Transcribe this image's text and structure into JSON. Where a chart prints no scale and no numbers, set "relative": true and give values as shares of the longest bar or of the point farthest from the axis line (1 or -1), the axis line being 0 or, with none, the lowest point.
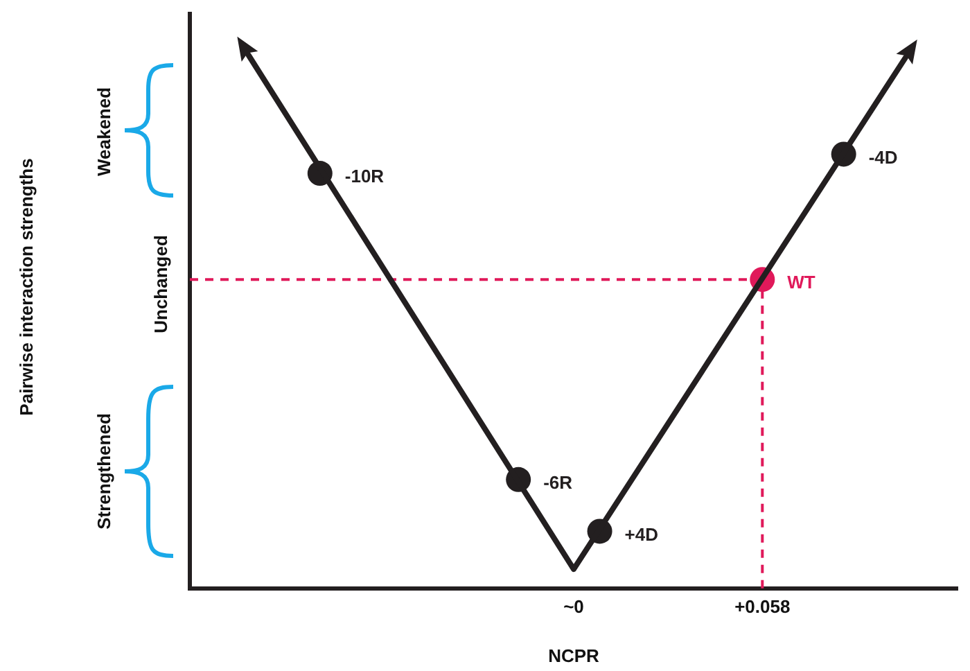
{
  "chart_data": {
    "type": "scatter",
    "xlabel": "NCPR",
    "relative": true,
    "xlim": [
      -0.118,
      0.118
    ],
    "xticks": [
      {
        "value": 0,
        "label": "~0"
      },
      {
        "value": 0.058,
        "label": "+0.058"
      }
    ],
    "annotations": [
      "Pairwise interaction strengths",
      "Weakened",
      "Unchanged",
      "Strengthened",
      {
        "text": "-10R",
        "x": -0.078,
        "y": 0.778
      },
      {
        "text": "-6R",
        "x": -0.017,
        "y": 0.204
      },
      {
        "text": "+4D",
        "x": 0.008,
        "y": 0.107
      },
      {
        "text": "WT",
        "x": 0.058,
        "y": 0.579
      },
      {
        "text": "-4D",
        "x": 0.083,
        "y": 0.814
      }
    ],
    "ref_lines": [
      {
        "axis": "y",
        "value": 0.579,
        "color": "#e0195a",
        "line_style": "dashed"
      },
      {
        "axis": "x",
        "value": 0.058,
        "color": "#e0195a",
        "line_style": "dashed"
      }
    ],
    "grid": false,
    "legend": false,
    "marker": "circle",
    "series": [
      {
        "type": "line",
        "color": "#231f20",
        "marker": "none",
        "x": [
          -0.1,
          0,
          0.102
        ],
        "values": [
          1.0,
          0.036,
          0.995
        ]
      },
      {
        "colors": [
          "#231f20",
          "#231f20",
          "#231f20",
          "#e0195a",
          "#231f20"
        ],
        "x": [
          -0.078,
          -0.017,
          0.008,
          0.058,
          0.083
        ],
        "values": [
          0.778,
          0.204,
          0.107,
          0.579,
          0.814
        ]
      }
    ]
  }
}
